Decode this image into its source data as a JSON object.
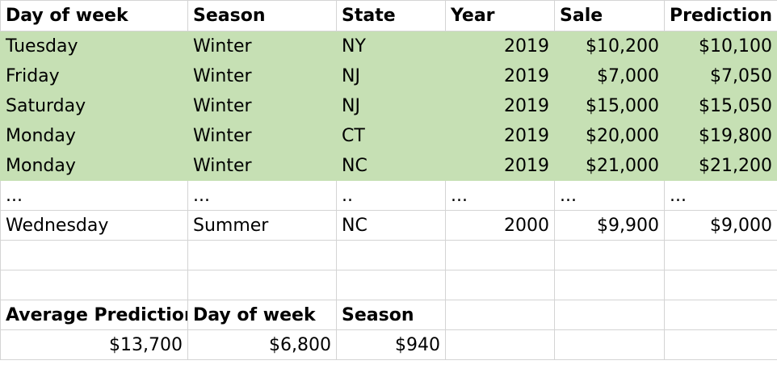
{
  "header": {
    "day_of_week": "Day of week",
    "season": "Season",
    "state": "State",
    "year": "Year",
    "sale": "Sale",
    "prediction": "Prediction"
  },
  "rows": [
    {
      "day": "Tuesday",
      "season": "Winter",
      "state": "NY",
      "year": "2019",
      "sale": "$10,200",
      "prediction": "$10,100"
    },
    {
      "day": "Friday",
      "season": "Winter",
      "state": "NJ",
      "year": "2019",
      "sale": "$7,000",
      "prediction": "$7,050"
    },
    {
      "day": "Saturday",
      "season": "Winter",
      "state": "NJ",
      "year": "2019",
      "sale": "$15,000",
      "prediction": "$15,050"
    },
    {
      "day": "Monday",
      "season": "Winter",
      "state": "CT",
      "year": "2019",
      "sale": "$20,000",
      "prediction": "$19,800"
    },
    {
      "day": "Monday",
      "season": "Winter",
      "state": "NC",
      "year": "2019",
      "sale": "$21,000",
      "prediction": "$21,200"
    }
  ],
  "ellipsis_row": {
    "day": "...",
    "season": "...",
    "state": "..",
    "year": "...",
    "sale": "...",
    "prediction": "..."
  },
  "last_row": {
    "day": "Wednesday",
    "season": "Summer",
    "state": "NC",
    "year": "2000",
    "sale": "$9,900",
    "prediction": "$9,000"
  },
  "summary": {
    "labels": {
      "average_prediction": "Average Prediction",
      "day_of_week": "Day of week",
      "season": "Season"
    },
    "values": {
      "average_prediction": "$13,700",
      "day_of_week": "$6,800",
      "season": "$940"
    }
  },
  "colors": {
    "highlight": "#c6e0b4",
    "gridline": "#d4d4d4"
  }
}
